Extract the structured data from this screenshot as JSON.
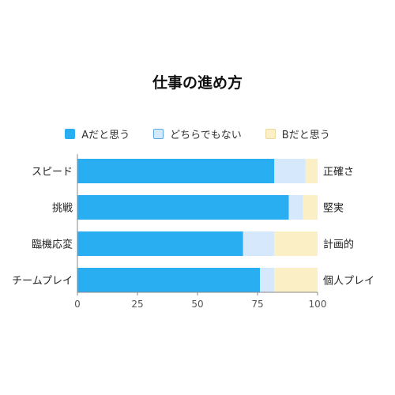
{
  "chart_data": {
    "type": "bar",
    "orientation": "horizontal",
    "stacked": true,
    "title": "仕事の進め方",
    "categories": [
      "スピード",
      "挑戦",
      "臨機応変",
      "チームプレイ"
    ],
    "right_labels": [
      "正確さ",
      "堅実",
      "計画的",
      "個人プレイ"
    ],
    "series": [
      {
        "name": "Aだと思う",
        "values": [
          82,
          88,
          69,
          76
        ]
      },
      {
        "name": "どちらでもない",
        "values": [
          13,
          6,
          13,
          6
        ]
      },
      {
        "name": "Bだと思う",
        "values": [
          5,
          6,
          18,
          18
        ]
      }
    ],
    "xlim": [
      0,
      100
    ],
    "xticks": [
      "0",
      "25",
      "50",
      "75",
      "100"
    ],
    "grid": false,
    "legend_position": "top"
  },
  "colors": {
    "a": "#2aaef2",
    "neutral": "#d6e9fc",
    "b": "#fbf0c5",
    "neutral_border": "#5aa9e6",
    "b_border": "#ead9a0",
    "axis": "#888888"
  }
}
